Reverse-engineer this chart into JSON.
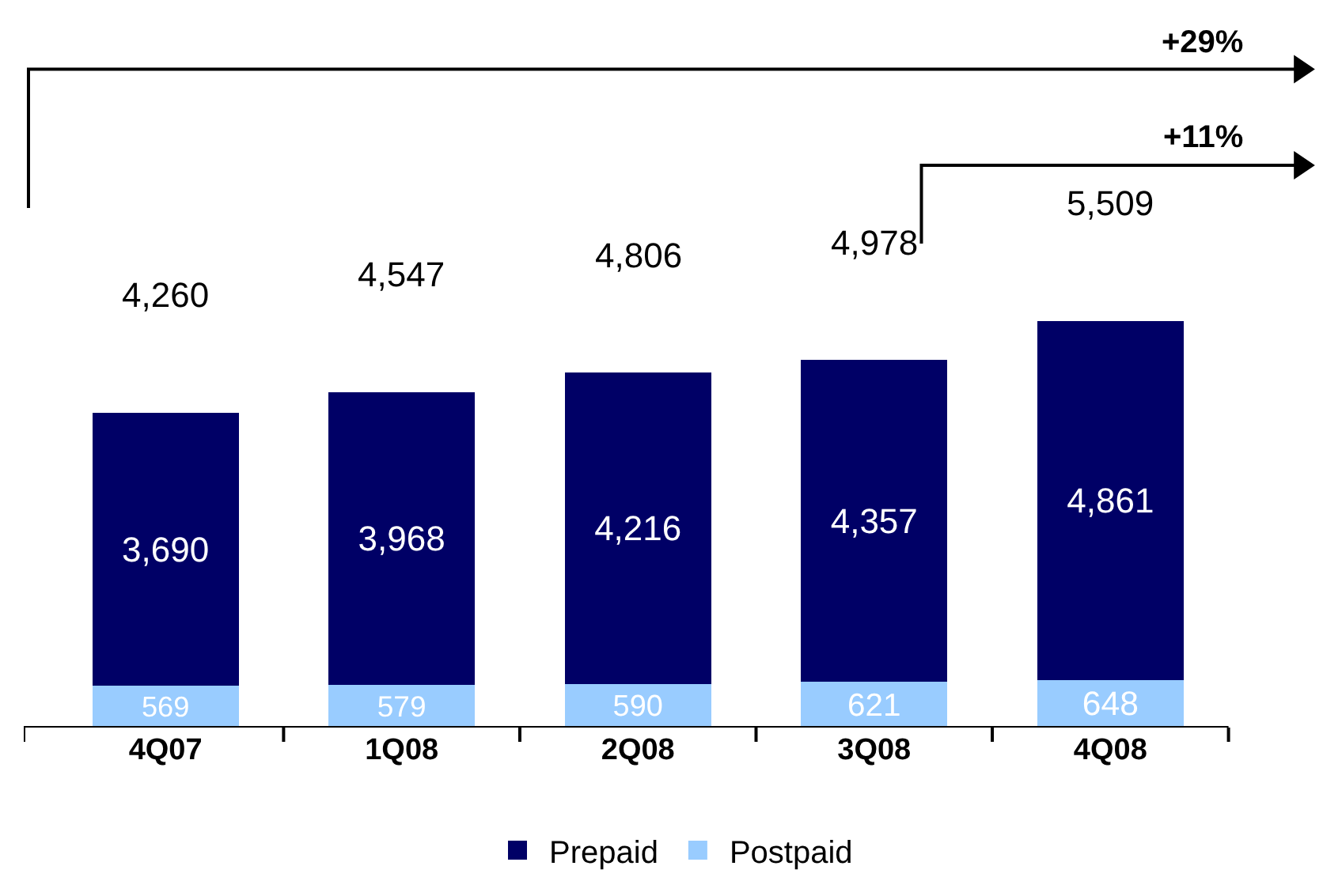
{
  "chart_data": {
    "type": "bar",
    "stacked": true,
    "categories": [
      "4Q07",
      "1Q08",
      "2Q08",
      "3Q08",
      "4Q08"
    ],
    "series": [
      {
        "name": "Postpaid",
        "color": "#99ccff",
        "values": [
          569,
          579,
          590,
          621,
          648
        ],
        "value_labels": [
          "569",
          "579",
          "590",
          "621",
          "648"
        ]
      },
      {
        "name": "Prepaid",
        "color": "#000066",
        "values": [
          3690,
          3968,
          4216,
          4357,
          4861
        ],
        "value_labels": [
          "3,690",
          "3,968",
          "4,216",
          "4,357",
          "4,861"
        ]
      }
    ],
    "totals": [
      "4,260",
      "4,547",
      "4,806",
      "4,978",
      "5,509"
    ],
    "annotations": [
      "+29%",
      "+11%"
    ],
    "legend": "bottom"
  }
}
